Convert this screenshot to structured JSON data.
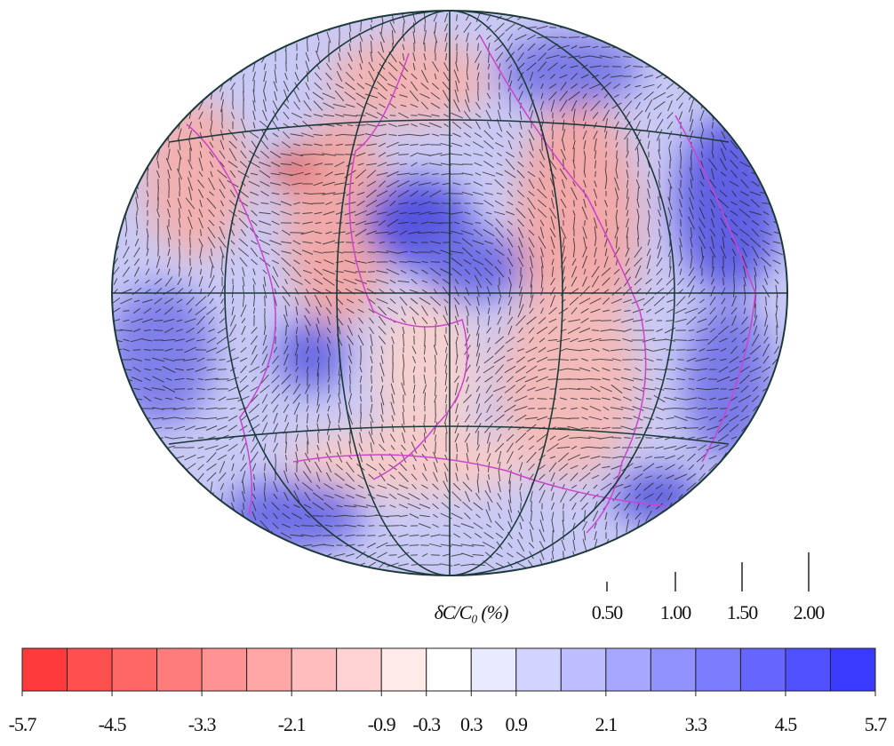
{
  "map": {
    "colorbar": {
      "label": "δC/C₀ (%)",
      "lim": [
        -5.7,
        5.7
      ],
      "bands": 19,
      "colormap": [
        "#ff3a3a",
        "#ffffff",
        "#3a3aff"
      ],
      "ticks": [
        -5.7,
        -4.5,
        -3.3,
        -2.1,
        -0.9,
        -0.3,
        0.3,
        0.9,
        2.1,
        3.3,
        4.5,
        5.7
      ]
    },
    "scale": [
      {
        "value": 0.5,
        "label": "0.50"
      },
      {
        "value": 1.0,
        "label": "1.00"
      },
      {
        "value": 1.5,
        "label": "1.50"
      },
      {
        "value": 2.0,
        "label": "2.00"
      }
    ]
  }
}
